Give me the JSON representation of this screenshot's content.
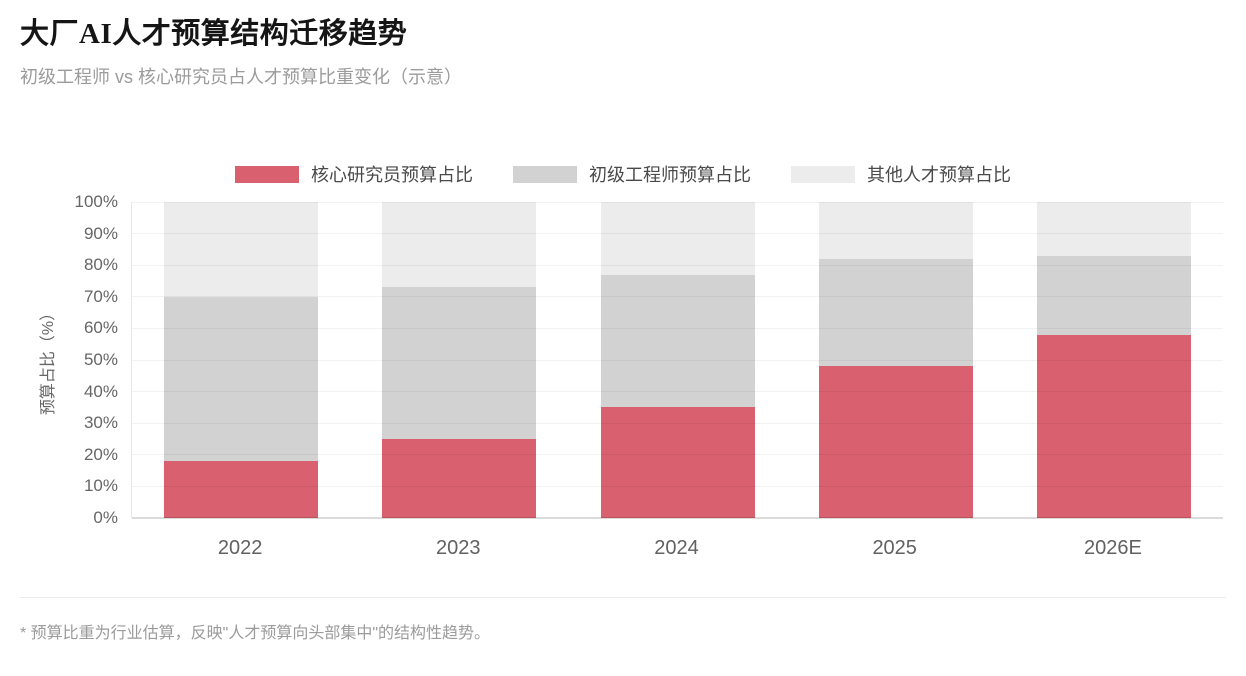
{
  "page": {
    "title": "大厂AI人才预算结构迁移趋势",
    "subtitle": "初级工程师 vs 核心研究员占人才预算比重变化（示意）",
    "footnote": "* 预算比重为行业估算，反映\"人才预算向头部集中\"的结构性趋势。"
  },
  "colors": {
    "core_red": "#d8606f",
    "junior_gray": "#d2d2d2",
    "other_lightgray": "#ececec",
    "grid_overlay": "rgba(0,0,0,0.05)",
    "axis_line": "rgba(0,0,0,0.14)"
  },
  "chart_data": {
    "type": "bar",
    "stacked": true,
    "title": "大厂AI人才预算结构迁移趋势",
    "subtitle": "初级工程师 vs 核心研究员占人才预算比重变化（示意）",
    "categories": [
      "2022",
      "2023",
      "2024",
      "2025",
      "2026E"
    ],
    "series": [
      {
        "name": "核心研究员预算占比",
        "color": "#d8606f",
        "values": [
          18,
          25,
          35,
          48,
          58
        ]
      },
      {
        "name": "初级工程师预算占比",
        "color": "#d2d2d2",
        "values": [
          52,
          48,
          42,
          34,
          25
        ]
      },
      {
        "name": "其他人才预算占比",
        "color": "#ececec",
        "values": [
          30,
          27,
          23,
          18,
          17
        ]
      }
    ],
    "cumulative_tops_note": "红色段顶: 18/25/35/48/58; 灰色段顶: 70/73/77/82/83; 其余补至100",
    "xlabel": "",
    "ylabel": "预算占比（%）",
    "ylim": [
      0,
      100
    ],
    "ytick_step": 10,
    "ytick_suffix": "%",
    "grid": true,
    "legend_position": "top"
  }
}
